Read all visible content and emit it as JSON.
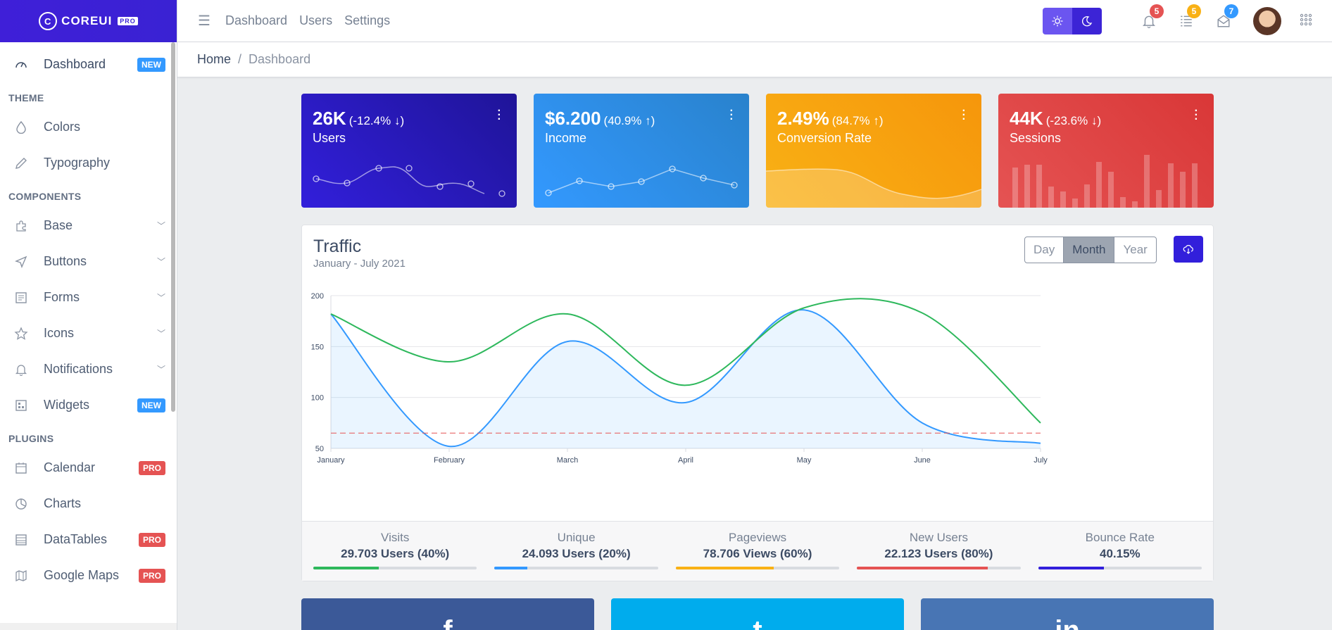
{
  "brand": {
    "name": "COREUI",
    "tag": "PRO"
  },
  "sidebar": {
    "items": [
      {
        "label": "Dashboard",
        "badge": "NEW"
      }
    ],
    "sections": [
      {
        "title": "THEME",
        "items": [
          {
            "label": "Colors"
          },
          {
            "label": "Typography"
          }
        ]
      },
      {
        "title": "COMPONENTS",
        "items": [
          {
            "label": "Base"
          },
          {
            "label": "Buttons"
          },
          {
            "label": "Forms"
          },
          {
            "label": "Icons"
          },
          {
            "label": "Notifications"
          },
          {
            "label": "Widgets",
            "badge": "NEW"
          }
        ]
      },
      {
        "title": "PLUGINS",
        "items": [
          {
            "label": "Calendar",
            "badge": "PRO"
          },
          {
            "label": "Charts"
          },
          {
            "label": "DataTables",
            "badge": "PRO"
          },
          {
            "label": "Google Maps",
            "badge": "PRO"
          }
        ]
      }
    ]
  },
  "header": {
    "nav": [
      "Dashboard",
      "Users",
      "Settings"
    ],
    "notifications": {
      "bell": "5",
      "list": "5",
      "mail": "7"
    }
  },
  "breadcrumb": {
    "home": "Home",
    "separator": "/",
    "current": "Dashboard"
  },
  "widgets": [
    {
      "value": "26K",
      "change": "(-12.4% ↓)",
      "label": "Users"
    },
    {
      "value": "$6.200",
      "change": "(40.9% ↑)",
      "label": "Income"
    },
    {
      "value": "2.49%",
      "change": "(84.7% ↑)",
      "label": "Conversion Rate"
    },
    {
      "value": "44K",
      "change": "(-23.6% ↓)",
      "label": "Sessions"
    }
  ],
  "traffic": {
    "title": "Traffic",
    "subtitle": "January - July 2021",
    "periods": [
      "Day",
      "Month",
      "Year"
    ],
    "active_period": "Month",
    "stats": [
      {
        "label": "Visits",
        "value": "29.703 Users (40%)",
        "percent": 40,
        "color": "#2eb85c"
      },
      {
        "label": "Unique",
        "value": "24.093 Users (20%)",
        "percent": 20,
        "color": "#39f"
      },
      {
        "label": "Pageviews",
        "value": "78.706 Views (60%)",
        "percent": 60,
        "color": "#f9b115"
      },
      {
        "label": "New Users",
        "value": "22.123 Users (80%)",
        "percent": 80,
        "color": "#e55353"
      },
      {
        "label": "Bounce Rate",
        "value": "40.15%",
        "percent": 40,
        "color": "#321fdb"
      }
    ]
  },
  "chart_data": {
    "type": "line",
    "x": [
      "January",
      "February",
      "March",
      "April",
      "May",
      "June",
      "July"
    ],
    "ylim": [
      50,
      200
    ],
    "yticks": [
      50,
      100,
      150,
      200
    ],
    "series": [
      {
        "values": [
          182,
          52,
          155,
          95,
          186,
          75,
          55
        ],
        "color": "#39f",
        "fill": true
      },
      {
        "values": [
          182,
          135,
          182,
          112,
          188,
          183,
          75
        ],
        "color": "#2eb85c"
      },
      {
        "values": [
          65,
          65,
          65,
          65,
          65,
          65,
          65
        ],
        "color": "#e55353",
        "dashed": true
      }
    ],
    "grid": true
  },
  "social": [
    "f",
    "t",
    "in"
  ]
}
